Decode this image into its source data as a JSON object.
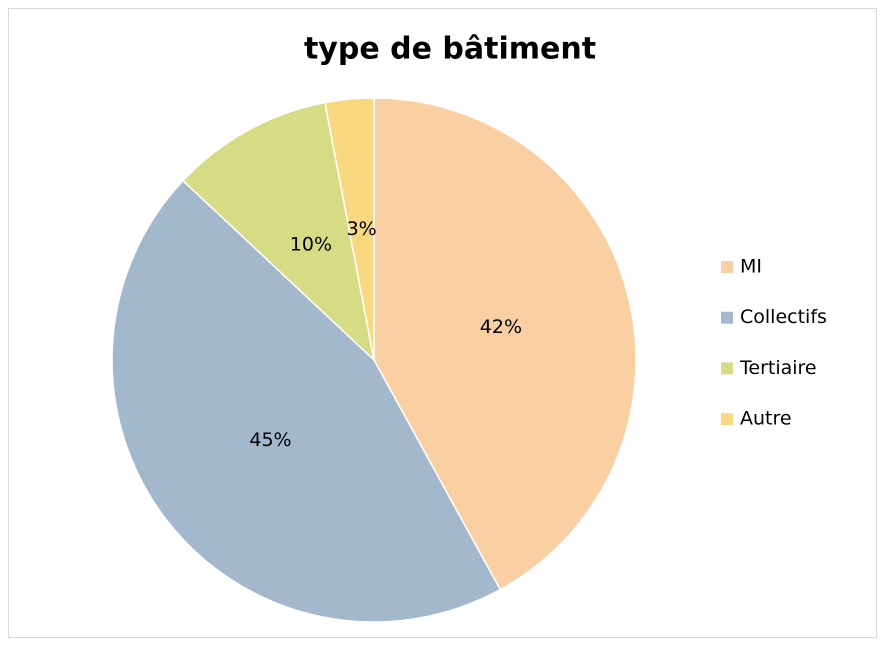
{
  "chart_data": {
    "type": "pie",
    "title": "type de bâtiment",
    "categories": [
      "MI",
      "Collectifs",
      "Tertiaire",
      "Autre"
    ],
    "values": [
      42,
      45,
      10,
      3
    ],
    "value_labels": [
      "42%",
      "45%",
      "10%",
      "3%"
    ],
    "colors": [
      "#fad0a2",
      "#a3b8cd",
      "#d5dc84",
      "#f9d880"
    ]
  }
}
